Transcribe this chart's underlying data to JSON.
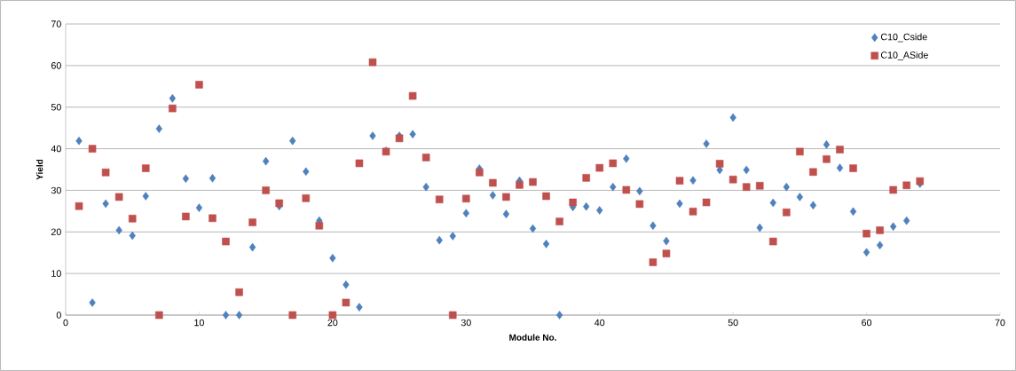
{
  "chart_data": {
    "type": "scatter",
    "xlabel": "Module No.",
    "ylabel": "Yield",
    "x": [
      1,
      2,
      3,
      4,
      5,
      6,
      7,
      8,
      9,
      10,
      11,
      12,
      13,
      14,
      15,
      16,
      17,
      18,
      19,
      20,
      21,
      22,
      23,
      24,
      25,
      26,
      27,
      28,
      29,
      30,
      31,
      32,
      33,
      34,
      35,
      36,
      37,
      38,
      39,
      40,
      41,
      42,
      43,
      44,
      45,
      46,
      47,
      48,
      49,
      50,
      51,
      52,
      53,
      54,
      55,
      56,
      57,
      58,
      59,
      60,
      61,
      62,
      63,
      64
    ],
    "series": [
      {
        "name": "C10_Cside",
        "color": "#4f81bd",
        "marker": "diamond",
        "values": [
          41.9,
          3.0,
          26.8,
          20.4,
          19.1,
          28.6,
          44.8,
          52.1,
          32.8,
          25.8,
          32.9,
          0,
          0,
          16.3,
          37.0,
          26.2,
          41.9,
          34.5,
          22.7,
          13.7,
          7.3,
          1.9,
          43.1,
          39.5,
          43.1,
          43.5,
          30.8,
          18.0,
          19.0,
          24.5,
          35.2,
          28.8,
          24.3,
          32.3,
          20.8,
          17.1,
          0,
          26.0,
          26.1,
          25.2,
          30.8,
          37.6,
          29.8,
          21.5,
          17.8,
          26.8,
          32.4,
          41.2,
          34.9,
          47.5,
          34.9,
          21.0,
          27.0,
          30.8,
          28.4,
          26.4,
          41.0,
          35.4,
          24.9,
          15.1,
          16.8,
          21.3,
          22.7,
          31.6
        ]
      },
      {
        "name": "C10_ASide",
        "color": "#c0504d",
        "marker": "square",
        "values": [
          26.2,
          40.0,
          34.3,
          28.4,
          23.2,
          35.3,
          0,
          49.7,
          23.7,
          55.4,
          23.3,
          17.7,
          5.5,
          22.3,
          30.0,
          26.9,
          0,
          28.1,
          21.5,
          0,
          3.0,
          36.5,
          60.8,
          39.3,
          42.5,
          52.7,
          37.9,
          27.8,
          0,
          28.0,
          34.3,
          31.8,
          28.4,
          31.3,
          32.0,
          28.6,
          22.5,
          27.1,
          33.0,
          35.4,
          36.5,
          30.1,
          26.7,
          12.7,
          14.8,
          32.3,
          24.9,
          27.1,
          36.4,
          32.6,
          30.8,
          31.1,
          17.7,
          24.7,
          39.3,
          34.4,
          37.5,
          39.8,
          35.3,
          19.6,
          20.4,
          30.1,
          31.2,
          32.2
        ]
      }
    ],
    "xlim": [
      0,
      70
    ],
    "xticks": [
      0,
      10,
      20,
      30,
      40,
      50,
      60,
      70
    ],
    "ylim": [
      0,
      70
    ],
    "yticks": [
      0,
      10,
      20,
      30,
      40,
      50,
      60,
      70
    ],
    "grid": "y",
    "legend": "top right"
  }
}
